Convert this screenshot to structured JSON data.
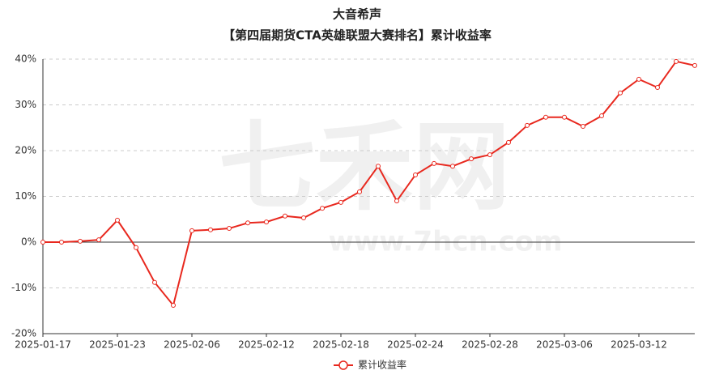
{
  "chart_data": {
    "type": "line",
    "title": "大音希声",
    "subtitle": "【第四届期货CTA英雄联盟大赛排名】累计收益率",
    "watermark": {
      "logo": "七禾网",
      "url": "www.7hcn.com"
    },
    "categories": [
      "2025-01-17",
      null,
      null,
      null,
      "2025-01-23",
      null,
      null,
      null,
      "2025-02-06",
      null,
      null,
      null,
      "2025-02-12",
      null,
      null,
      null,
      "2025-02-18",
      null,
      null,
      null,
      "2025-02-24",
      null,
      null,
      null,
      "2025-02-28",
      null,
      null,
      null,
      "2025-03-06",
      null,
      null,
      null,
      "2025-03-12",
      null,
      null,
      null
    ],
    "series": [
      {
        "name": "累计收益率",
        "color": "#e8281e",
        "values": [
          0,
          0,
          0.2,
          0.5,
          4.8,
          -1.2,
          -8.8,
          -13.8,
          2.5,
          2.7,
          3.0,
          4.2,
          4.4,
          5.7,
          5.3,
          7.4,
          8.7,
          11.0,
          16.6,
          9.0,
          14.7,
          17.2,
          16.6,
          18.2,
          19.1,
          21.8,
          25.5,
          27.3,
          27.3,
          25.3,
          27.6,
          32.6,
          35.6,
          33.8,
          39.5,
          38.6
        ]
      }
    ],
    "ylim": [
      -20,
      40
    ],
    "yticks": [
      {
        "value": -20,
        "label": "-20%"
      },
      {
        "value": -10,
        "label": "-10%"
      },
      {
        "value": 0,
        "label": "0%"
      },
      {
        "value": 10,
        "label": "10%"
      },
      {
        "value": 20,
        "label": "20%"
      },
      {
        "value": 30,
        "label": "30%"
      },
      {
        "value": 40,
        "label": "40%"
      }
    ],
    "grid": true,
    "legend": "bottom"
  }
}
